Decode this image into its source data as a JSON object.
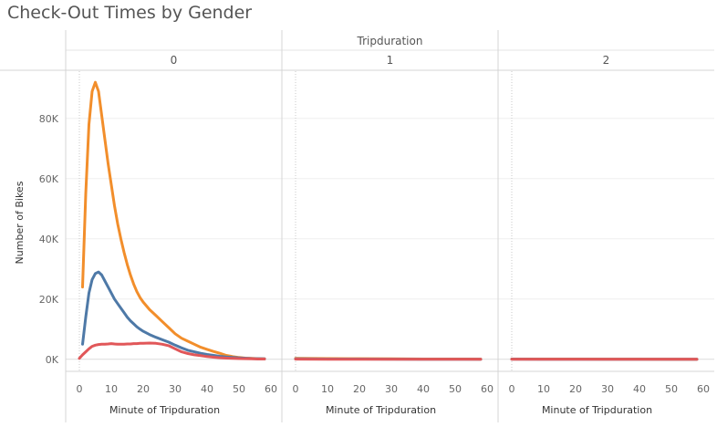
{
  "chart_data": {
    "type": "line",
    "title": "Check-Out Times by Gender",
    "column_field": "Tripduration",
    "panels": [
      "0",
      "1",
      "2"
    ],
    "xlabel": "Minute of Tripduration",
    "ylabel": "Number of Bikes",
    "xlim": [
      0,
      60
    ],
    "ylim": [
      -4000,
      96000
    ],
    "x_ticks": [
      "0",
      "10",
      "20",
      "30",
      "40",
      "50",
      "60"
    ],
    "y_ticks": [
      {
        "value": 0,
        "label": "0K"
      },
      {
        "value": 20000,
        "label": "20K"
      },
      {
        "value": 40000,
        "label": "40K"
      },
      {
        "value": 60000,
        "label": "60K"
      },
      {
        "value": 80000,
        "label": "80K"
      }
    ],
    "grid": true,
    "series": [
      {
        "color": "#f28e2b",
        "points": [
          {
            "panel": 0,
            "x": [
              1,
              2,
              3,
              4,
              5,
              6,
              7,
              8,
              9,
              10,
              11,
              12,
              13,
              14,
              15,
              16,
              17,
              18,
              19,
              20,
              22,
              24,
              26,
              28,
              30,
              32,
              34,
              36,
              38,
              40,
              42,
              44,
              46,
              48,
              50,
              52,
              54,
              56,
              58
            ],
            "y": [
              24000,
              55000,
              78000,
              89000,
              92000,
              89000,
              81000,
              73000,
              65000,
              58000,
              51000,
              45000,
              40000,
              35500,
              31500,
              28000,
              25000,
              22500,
              20500,
              19000,
              16500,
              14500,
              12500,
              10500,
              8500,
              7000,
              6000,
              5000,
              4000,
              3300,
              2600,
              2000,
              1300,
              900,
              600,
              400,
              300,
              200,
              150
            ]
          },
          {
            "panel": 1,
            "x": [
              0,
              10,
              20,
              30,
              40,
              50,
              58
            ],
            "y": [
              300,
              250,
              200,
              150,
              100,
              80,
              60
            ]
          },
          {
            "panel": 2,
            "x": [
              0,
              10,
              20,
              30,
              40,
              50,
              58
            ],
            "y": [
              100,
              100,
              80,
              60,
              50,
              40,
              30
            ]
          }
        ]
      },
      {
        "color": "#4e79a7",
        "points": [
          {
            "panel": 0,
            "x": [
              1,
              2,
              3,
              4,
              5,
              6,
              7,
              8,
              9,
              10,
              11,
              12,
              13,
              14,
              15,
              16,
              17,
              18,
              19,
              20,
              22,
              24,
              26,
              28,
              30,
              32,
              34,
              36,
              38,
              40,
              42,
              44,
              46,
              48,
              50,
              52,
              54,
              56,
              58
            ],
            "y": [
              5000,
              14000,
              22000,
              26500,
              28500,
              29000,
              28000,
              26000,
              24000,
              22000,
              20000,
              18500,
              17000,
              15500,
              14000,
              12800,
              11800,
              10800,
              10000,
              9300,
              8200,
              7300,
              6500,
              5700,
              4700,
              3800,
              3000,
              2500,
              2000,
              1600,
              1300,
              1000,
              800,
              600,
              450,
              350,
              250,
              200,
              150
            ]
          },
          {
            "panel": 1,
            "x": [
              0,
              10,
              20,
              30,
              40,
              50,
              58
            ],
            "y": [
              150,
              100,
              80,
              60,
              40,
              30,
              20
            ]
          },
          {
            "panel": 2,
            "x": [
              0,
              10,
              20,
              30,
              40,
              50,
              58
            ],
            "y": [
              50,
              40,
              30,
              20,
              10,
              10,
              10
            ]
          }
        ]
      },
      {
        "color": "#e15759",
        "points": [
          {
            "panel": 0,
            "x": [
              0,
              1,
              2,
              3,
              4,
              5,
              6,
              7,
              8,
              9,
              10,
              11,
              12,
              13,
              14,
              15,
              16,
              17,
              18,
              19,
              20,
              22,
              24,
              26,
              28,
              30,
              32,
              34,
              36,
              38,
              40,
              42,
              44,
              46,
              48,
              50,
              52,
              54,
              56,
              58
            ],
            "y": [
              300,
              1500,
              2500,
              3500,
              4300,
              4700,
              4900,
              5000,
              5000,
              5100,
              5200,
              5100,
              5000,
              5000,
              5000,
              5100,
              5100,
              5200,
              5200,
              5300,
              5300,
              5400,
              5300,
              5000,
              4500,
              3500,
              2500,
              1900,
              1500,
              1200,
              900,
              700,
              500,
              400,
              300,
              250,
              200,
              150,
              100,
              80
            ]
          },
          {
            "panel": 1,
            "x": [
              0,
              10,
              20,
              30,
              40,
              50,
              58
            ],
            "y": [
              50,
              40,
              30,
              20,
              10,
              10,
              10
            ]
          },
          {
            "panel": 2,
            "x": [
              0,
              10,
              20,
              30,
              40,
              50,
              58
            ],
            "y": [
              20,
              10,
              10,
              10,
              10,
              10,
              10
            ]
          }
        ]
      }
    ]
  }
}
